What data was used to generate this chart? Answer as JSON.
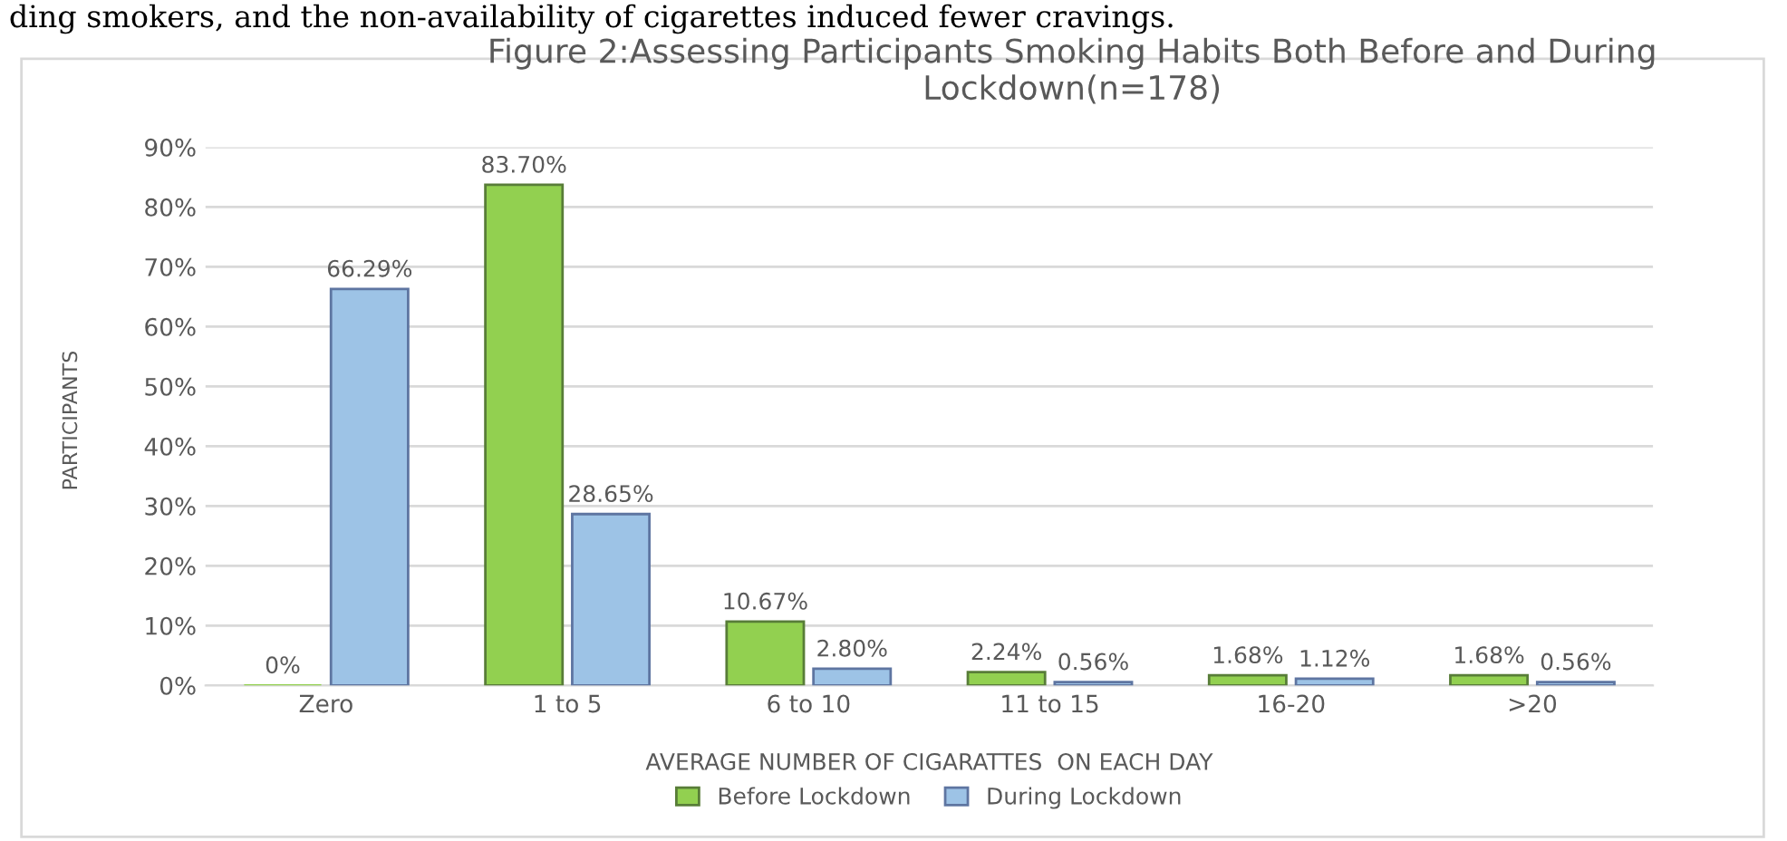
{
  "chart_data": {
    "type": "bar",
    "title": "Figure 2:Assessing Participants Smoking Habits Both Before and During Lockdown(n=178)",
    "xlabel": "AVERAGE NUMBER OF CIGARATTES  ON EACH DAY",
    "ylabel": "PARTICIPANTS",
    "annotations": [
      "ding smokers, and the non-availability of cigarettes induced fewer cravings."
    ],
    "categories": [
      "Zero",
      "1 to 5",
      "6 to 10",
      "11 to 15",
      "16-20",
      ">20"
    ],
    "series": [
      {
        "name": "Before Lockdown",
        "color": "#92d050",
        "values": [
          0,
          83.7,
          10.67,
          2.24,
          1.68,
          1.68
        ],
        "value_labels": [
          "0%",
          "83.70%",
          "10.67%",
          "2.24%",
          "1.68%",
          "1.68%"
        ]
      },
      {
        "name": "During Lockdown",
        "color": "#9dc3e6",
        "values": [
          66.29,
          28.65,
          2.8,
          0.56,
          1.12,
          0.56
        ],
        "value_labels": [
          "66.29%",
          "28.65%",
          "2.80%",
          "0.56%",
          "1.12%",
          "0.56%"
        ]
      }
    ],
    "ylim": [
      0,
      90
    ],
    "yticks": [
      {
        "value": 0,
        "label": "0%"
      },
      {
        "value": 10,
        "label": "10%"
      },
      {
        "value": 20,
        "label": "20%"
      },
      {
        "value": 30,
        "label": "30%"
      },
      {
        "value": 40,
        "label": "40%"
      },
      {
        "value": 50,
        "label": "50%"
      },
      {
        "value": 60,
        "label": "60%"
      },
      {
        "value": 70,
        "label": "70%"
      },
      {
        "value": 80,
        "label": "80%"
      },
      {
        "value": 90,
        "label": "90%"
      }
    ],
    "grid": "y",
    "legend": "bottom"
  }
}
